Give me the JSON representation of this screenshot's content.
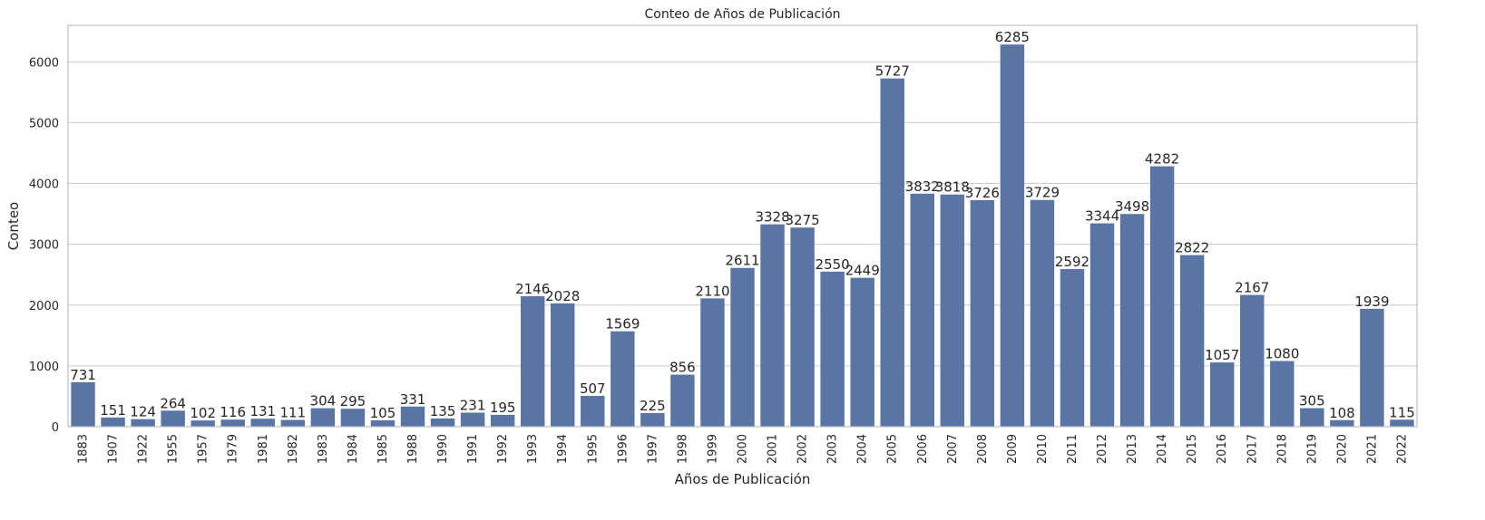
{
  "chart_data": {
    "type": "bar",
    "title": "Conteo de Años de Publicación",
    "xlabel": "Años de Publicación",
    "ylabel": "Conteo",
    "ylim": [
      0,
      6600
    ],
    "yticks": [
      0,
      1000,
      2000,
      3000,
      4000,
      5000,
      6000
    ],
    "grid": "y",
    "bar_color": "#5975a4",
    "categories": [
      "1883",
      "1907",
      "1922",
      "1955",
      "1957",
      "1979",
      "1981",
      "1982",
      "1983",
      "1984",
      "1985",
      "1988",
      "1990",
      "1991",
      "1992",
      "1993",
      "1994",
      "1995",
      "1996",
      "1997",
      "1998",
      "1999",
      "2000",
      "2001",
      "2002",
      "2003",
      "2004",
      "2005",
      "2006",
      "2007",
      "2008",
      "2009",
      "2010",
      "2011",
      "2012",
      "2013",
      "2014",
      "2015",
      "2016",
      "2017",
      "2018",
      "2019",
      "2020",
      "2021",
      "2022"
    ],
    "values": [
      731,
      151,
      124,
      264,
      102,
      116,
      131,
      111,
      304,
      295,
      105,
      331,
      135,
      231,
      195,
      2146,
      2028,
      507,
      1569,
      225,
      856,
      2110,
      2611,
      3328,
      3275,
      2550,
      2449,
      5727,
      3832,
      3818,
      3726,
      6285,
      3729,
      2592,
      3344,
      3498,
      4282,
      2822,
      1057,
      2167,
      1080,
      305,
      108,
      1939,
      115
    ]
  }
}
